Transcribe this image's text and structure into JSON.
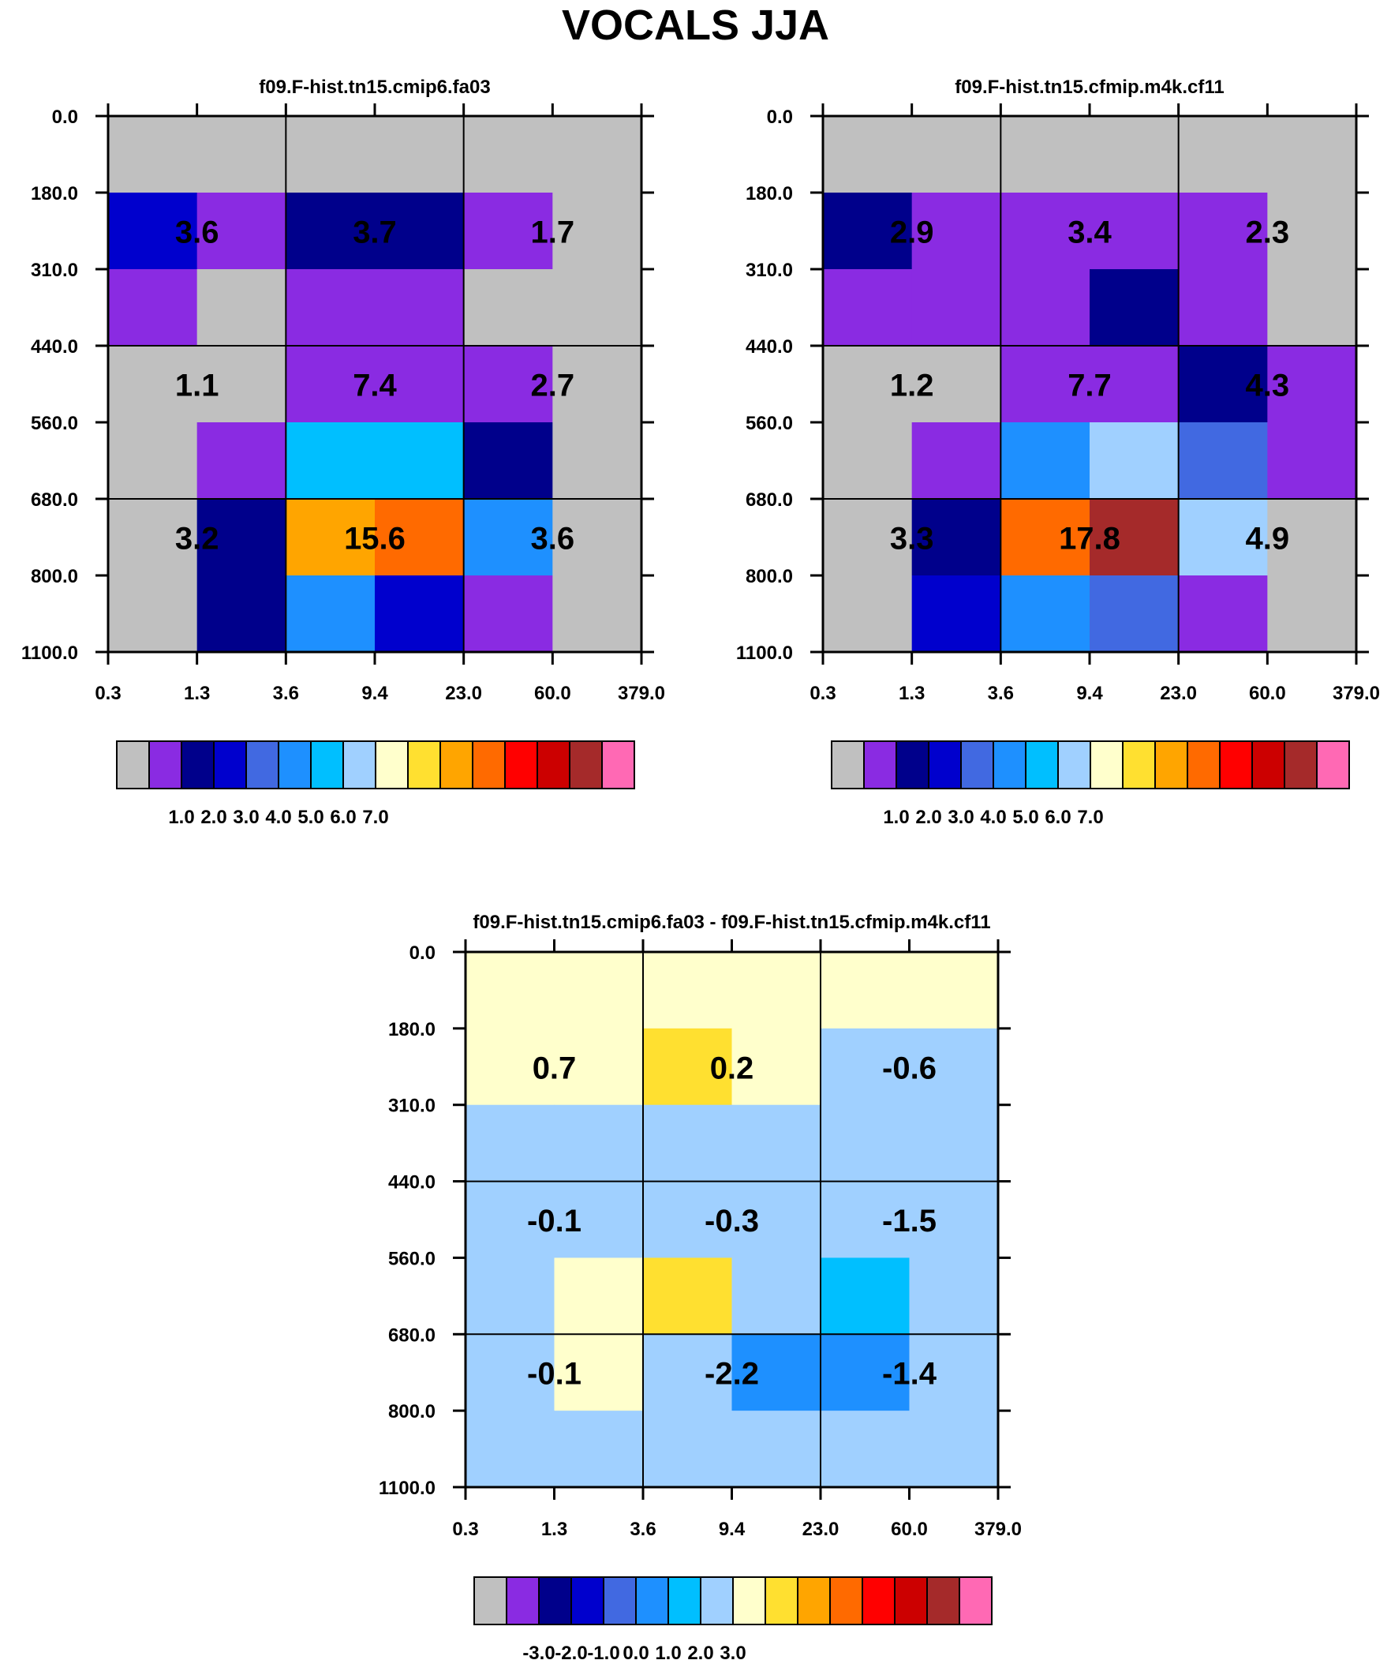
{
  "page_title": "VOCALS JJA",
  "chart_data": [
    {
      "type": "heatmap",
      "title": "f09.F-hist.tn15.cmip6.fa03",
      "x_tick_labels": [
        "0.3",
        "1.3",
        "3.6",
        "9.4",
        "23.0",
        "60.0",
        "379.0"
      ],
      "y_tick_labels": [
        "0.0",
        "180.0",
        "310.0",
        "440.0",
        "560.0",
        "680.0",
        "800.0",
        "1100.0"
      ],
      "grid": "cell",
      "cells": [
        [
          "gray",
          "gray",
          "gray",
          "gray",
          "gray",
          "gray"
        ],
        [
          "blue",
          "purple",
          "navy",
          "navy",
          "purple",
          "gray"
        ],
        [
          "purple",
          "gray",
          "purple",
          "purple",
          "gray",
          "gray"
        ],
        [
          "gray",
          "gray",
          "purple",
          "purple",
          "purple",
          "gray"
        ],
        [
          "gray",
          "purple",
          "deepskyblue",
          "deepskyblue",
          "navy",
          "gray"
        ],
        [
          "gray",
          "navy",
          "orange",
          "darkorange",
          "dodgerblue",
          "gray"
        ],
        [
          "gray",
          "navy",
          "dodgerblue",
          "blue",
          "purple",
          "gray"
        ]
      ],
      "block_values": [
        [
          "3.6",
          "3.7",
          "1.7"
        ],
        [
          "1.1",
          "7.4",
          "2.7"
        ],
        [
          "3.2",
          "15.6",
          "3.6"
        ]
      ],
      "colorbar_labels": [
        "1.0",
        "2.0",
        "3.0",
        "4.0",
        "5.0",
        "6.0",
        "7.0"
      ]
    },
    {
      "type": "heatmap",
      "title": "f09.F-hist.tn15.cfmip.m4k.cf11",
      "x_tick_labels": [
        "0.3",
        "1.3",
        "3.6",
        "9.4",
        "23.0",
        "60.0",
        "379.0"
      ],
      "y_tick_labels": [
        "0.0",
        "180.0",
        "310.0",
        "440.0",
        "560.0",
        "680.0",
        "800.0",
        "1100.0"
      ],
      "grid": "cell",
      "cells": [
        [
          "gray",
          "gray",
          "gray",
          "gray",
          "gray",
          "gray"
        ],
        [
          "navy",
          "purple",
          "purple",
          "purple",
          "purple",
          "gray"
        ],
        [
          "purple",
          "purple",
          "purple",
          "navy",
          "purple",
          "gray"
        ],
        [
          "gray",
          "gray",
          "purple",
          "purple",
          "navy",
          "purple"
        ],
        [
          "gray",
          "purple",
          "dodgerblue",
          "lightskyblue",
          "royalblue",
          "purple"
        ],
        [
          "gray",
          "navy",
          "darkorange",
          "firebrick",
          "lightskyblue",
          "gray"
        ],
        [
          "gray",
          "blue",
          "dodgerblue",
          "royalblue",
          "purple",
          "gray"
        ]
      ],
      "block_values": [
        [
          "2.9",
          "3.4",
          "2.3"
        ],
        [
          "1.2",
          "7.7",
          "4.3"
        ],
        [
          "3.3",
          "17.8",
          "4.9"
        ]
      ],
      "colorbar_labels": [
        "1.0",
        "2.0",
        "3.0",
        "4.0",
        "5.0",
        "6.0",
        "7.0"
      ]
    },
    {
      "type": "heatmap",
      "title": "f09.F-hist.tn15.cmip6.fa03 - f09.F-hist.tn15.cfmip.m4k.cf11",
      "x_tick_labels": [
        "0.3",
        "1.3",
        "3.6",
        "9.4",
        "23.0",
        "60.0",
        "379.0"
      ],
      "y_tick_labels": [
        "0.0",
        "180.0",
        "310.0",
        "440.0",
        "560.0",
        "680.0",
        "800.0",
        "1100.0"
      ],
      "grid": "cell",
      "cells": [
        [
          "lightyellow",
          "lightyellow",
          "lightyellow",
          "lightyellow",
          "lightyellow",
          "lightyellow"
        ],
        [
          "lightyellow",
          "lightyellow",
          "gold",
          "lightyellow",
          "lightskyblue",
          "lightskyblue"
        ],
        [
          "lightskyblue",
          "lightskyblue",
          "lightskyblue",
          "lightskyblue",
          "lightskyblue",
          "lightskyblue"
        ],
        [
          "lightskyblue",
          "lightskyblue",
          "lightskyblue",
          "lightskyblue",
          "lightskyblue",
          "lightskyblue"
        ],
        [
          "lightskyblue",
          "lightyellow",
          "gold",
          "lightskyblue",
          "deepskyblue",
          "lightskyblue"
        ],
        [
          "lightskyblue",
          "lightyellow",
          "lightskyblue",
          "dodgerblue",
          "dodgerblue",
          "lightskyblue"
        ],
        [
          "lightskyblue",
          "lightskyblue",
          "lightskyblue",
          "lightskyblue",
          "lightskyblue",
          "lightskyblue"
        ]
      ],
      "block_values": [
        [
          "0.7",
          "0.2",
          "-0.6"
        ],
        [
          "-0.1",
          "-0.3",
          "-1.5"
        ],
        [
          "-0.1",
          "-2.2",
          "-1.4"
        ]
      ],
      "colorbar_labels": [
        "-3.0",
        "-2.0",
        "-1.0",
        "0.0",
        "1.0",
        "2.0",
        "3.0"
      ]
    }
  ],
  "colors": {
    "gray": "#c0c0c0",
    "purple": "#8a2be2",
    "navy": "#00008b",
    "blue": "#0000cd",
    "royalblue": "#4169e1",
    "dodgerblue": "#1e90ff",
    "deepskyblue": "#00bfff",
    "lightskyblue": "#a0d0ff",
    "lightyellow": "#ffffcc",
    "gold": "#ffe030",
    "orange": "#ffa500",
    "darkorange": "#ff6a00",
    "red": "#ff0000",
    "darkred": "#cc0000",
    "firebrick": "#a52a2a",
    "hotpink": "#ff69b4"
  },
  "colorbar_swatches": [
    "gray",
    "purple",
    "navy",
    "blue",
    "royalblue",
    "dodgerblue",
    "deepskyblue",
    "lightskyblue",
    "lightyellow",
    "gold",
    "orange",
    "darkorange",
    "red",
    "darkred",
    "firebrick",
    "hotpink"
  ]
}
